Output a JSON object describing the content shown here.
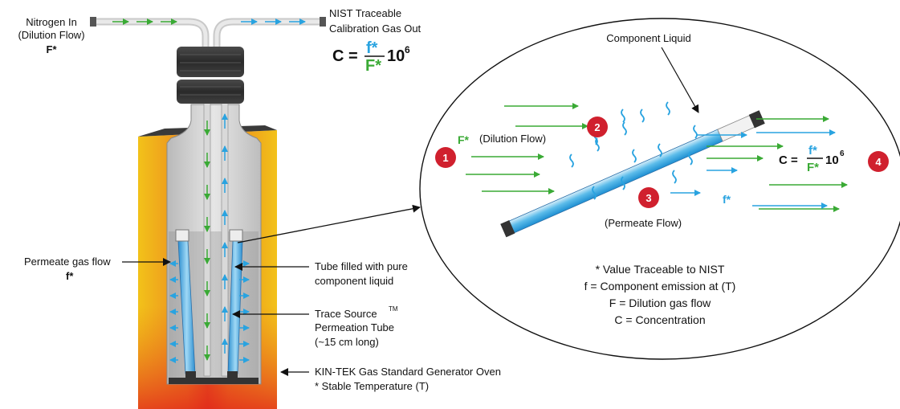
{
  "labels": {
    "nitrogen_in": [
      "Nitrogen In",
      "(Dilution Flow)",
      "F*"
    ],
    "gas_out": [
      "NIST Traceable",
      "Calibration Gas Out"
    ],
    "equation_main": {
      "c": "C =",
      "num": "f*",
      "den": "F*",
      "pow": "10",
      "exp": "6"
    },
    "permeate_gas_flow": [
      "Permeate gas flow",
      "f*"
    ],
    "tube_filled": [
      "Tube filled with pure",
      "component liquid"
    ],
    "trace_source": [
      "Trace Source",
      "TM",
      "Permeation Tube",
      "(~15 cm long)"
    ],
    "oven": [
      "KIN-TEK Gas Standard Generator Oven",
      "* Stable Temperature (T)"
    ]
  },
  "detail": {
    "component_liquid": "Component Liquid",
    "dilution_f": "F*",
    "dilution_flow": "(Dilution Flow)",
    "permeate_flow": "(Permeate Flow)",
    "f_star": "f*",
    "equation": {
      "c": "C =",
      "num": "f*",
      "den": "F*",
      "pow": "10",
      "exp": "6"
    },
    "steps": [
      "1",
      "2",
      "3",
      "4"
    ],
    "notes": [
      "* Value Traceable to NIST",
      "f = Component emission at (T)",
      "F = Dilution gas flow",
      "C = Concentration"
    ]
  },
  "colors": {
    "green": "#3aaa35",
    "blue": "#29a3e0",
    "badge": "#d0202e",
    "oven_outer": "#e8a21c",
    "oven_inner": "#e2451c"
  }
}
